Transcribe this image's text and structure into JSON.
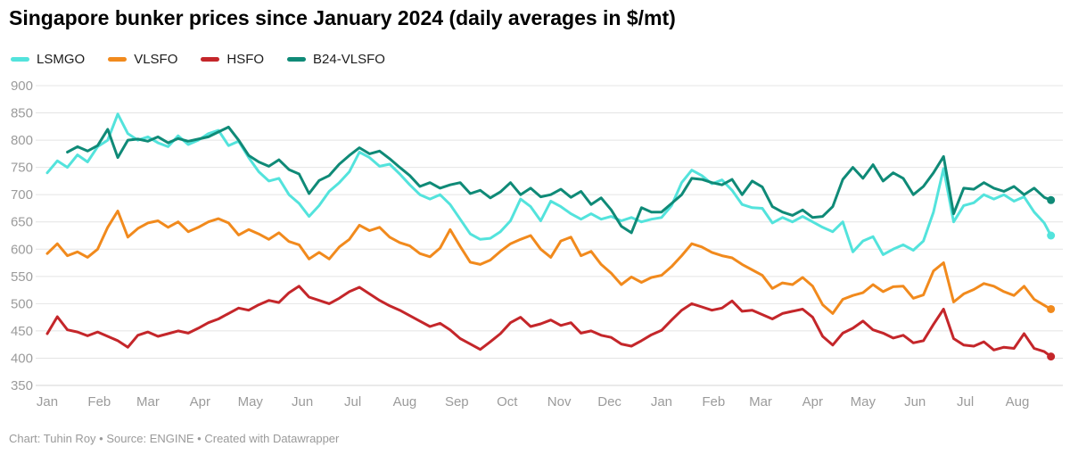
{
  "header": {
    "title": "Singapore bunker prices since January 2024 (daily averages in $/mt)"
  },
  "footer": {
    "credit": "Chart: Tuhin Roy • Source: ENGINE • Created with Datawrapper"
  },
  "chart_data": {
    "type": "line",
    "title": "Singapore bunker prices since January 2024 (daily averages in $/mt)",
    "xlabel": "",
    "ylabel": "$/mt",
    "ylim": [
      350,
      920
    ],
    "grid": true,
    "legend_position": "top-left",
    "x_axis_note": "x values are days since 2024-01-01; data runs Jan 2024 to mid-Aug 2025",
    "y_ticks": [
      350,
      400,
      450,
      500,
      550,
      600,
      650,
      700,
      750,
      800,
      850,
      900
    ],
    "x_ticks": [
      {
        "label": "Jan",
        "day": 0
      },
      {
        "label": "Feb",
        "day": 31
      },
      {
        "label": "Mar",
        "day": 60
      },
      {
        "label": "Apr",
        "day": 91
      },
      {
        "label": "May",
        "day": 121
      },
      {
        "label": "Jun",
        "day": 152
      },
      {
        "label": "Jul",
        "day": 182
      },
      {
        "label": "Aug",
        "day": 213
      },
      {
        "label": "Sep",
        "day": 244
      },
      {
        "label": "Oct",
        "day": 274
      },
      {
        "label": "Nov",
        "day": 305
      },
      {
        "label": "Dec",
        "day": 335
      },
      {
        "label": "Jan",
        "day": 366
      },
      {
        "label": "Feb",
        "day": 397
      },
      {
        "label": "Mar",
        "day": 425
      },
      {
        "label": "Apr",
        "day": 456
      },
      {
        "label": "May",
        "day": 486
      },
      {
        "label": "Jun",
        "day": 517
      },
      {
        "label": "Jul",
        "day": 547
      },
      {
        "label": "Aug",
        "day": 578
      }
    ],
    "x_days": [
      0,
      6,
      12,
      18,
      24,
      30,
      36,
      42,
      48,
      54,
      60,
      66,
      72,
      78,
      84,
      90,
      96,
      102,
      108,
      114,
      120,
      126,
      132,
      138,
      144,
      150,
      156,
      162,
      168,
      174,
      180,
      186,
      192,
      198,
      204,
      210,
      216,
      222,
      228,
      234,
      240,
      246,
      252,
      258,
      264,
      270,
      276,
      282,
      288,
      294,
      300,
      306,
      312,
      318,
      324,
      330,
      336,
      342,
      348,
      354,
      360,
      366,
      372,
      378,
      384,
      390,
      396,
      402,
      408,
      414,
      420,
      426,
      432,
      438,
      444,
      450,
      456,
      462,
      468,
      474,
      480,
      486,
      492,
      498,
      504,
      510,
      516,
      522,
      528,
      534,
      540,
      546,
      552,
      558,
      564,
      570,
      576,
      582,
      588,
      594,
      598
    ],
    "series": [
      {
        "name": "LSMGO",
        "color": "#53e3dc",
        "values": [
          740,
          762,
          750,
          773,
          760,
          788,
          800,
          848,
          812,
          800,
          806,
          795,
          788,
          808,
          792,
          800,
          812,
          818,
          790,
          798,
          768,
          742,
          725,
          730,
          700,
          684,
          660,
          680,
          706,
          722,
          742,
          778,
          768,
          752,
          756,
          738,
          718,
          700,
          692,
          700,
          682,
          655,
          628,
          618,
          620,
          632,
          652,
          692,
          678,
          652,
          688,
          678,
          665,
          655,
          665,
          655,
          660,
          652,
          658,
          650,
          655,
          658,
          680,
          722,
          745,
          735,
          720,
          727,
          708,
          682,
          676,
          675,
          648,
          658,
          650,
          660,
          650,
          640,
          632,
          650,
          595,
          615,
          623,
          590,
          600,
          608,
          598,
          615,
          668,
          748,
          650,
          680,
          685,
          700,
          692,
          700,
          688,
          696,
          668,
          648,
          625
        ]
      },
      {
        "name": "VLSFO",
        "color": "#f18a1d",
        "values": [
          592,
          610,
          588,
          595,
          585,
          600,
          640,
          670,
          622,
          638,
          648,
          652,
          640,
          650,
          632,
          640,
          650,
          656,
          648,
          626,
          636,
          628,
          618,
          630,
          614,
          608,
          582,
          594,
          582,
          604,
          618,
          644,
          634,
          640,
          622,
          612,
          606,
          592,
          586,
          602,
          636,
          605,
          576,
          572,
          580,
          596,
          610,
          618,
          625,
          600,
          585,
          615,
          622,
          588,
          596,
          572,
          556,
          535,
          549,
          539,
          548,
          552,
          568,
          588,
          610,
          604,
          594,
          588,
          584,
          572,
          562,
          552,
          528,
          538,
          535,
          548,
          532,
          498,
          482,
          508,
          515,
          520,
          535,
          522,
          531,
          532,
          510,
          516,
          560,
          575,
          503,
          518,
          526,
          537,
          532,
          522,
          515,
          532,
          508,
          497,
          490
        ]
      },
      {
        "name": "HSFO",
        "color": "#c4262a",
        "values": [
          445,
          476,
          452,
          448,
          441,
          448,
          440,
          432,
          420,
          442,
          448,
          440,
          445,
          450,
          446,
          455,
          465,
          472,
          482,
          492,
          488,
          498,
          506,
          502,
          520,
          532,
          512,
          506,
          500,
          510,
          522,
          530,
          518,
          506,
          496,
          488,
          478,
          468,
          458,
          464,
          452,
          436,
          426,
          416,
          430,
          445,
          465,
          475,
          458,
          463,
          470,
          460,
          465,
          446,
          450,
          442,
          438,
          426,
          422,
          432,
          443,
          451,
          470,
          488,
          500,
          494,
          488,
          492,
          505,
          486,
          488,
          480,
          472,
          482,
          486,
          490,
          475,
          440,
          424,
          446,
          455,
          468,
          452,
          446,
          437,
          442,
          428,
          432,
          462,
          490,
          436,
          424,
          422,
          430,
          415,
          420,
          418,
          445,
          418,
          412,
          403
        ]
      },
      {
        "name": "B24-VLSFO",
        "color": "#0f8a77",
        "values": [
          null,
          null,
          778,
          788,
          780,
          790,
          820,
          768,
          800,
          802,
          798,
          806,
          795,
          803,
          798,
          802,
          806,
          815,
          824,
          800,
          772,
          760,
          752,
          764,
          746,
          738,
          702,
          726,
          735,
          756,
          772,
          786,
          775,
          780,
          766,
          750,
          735,
          715,
          722,
          712,
          718,
          722,
          702,
          708,
          694,
          705,
          722,
          700,
          712,
          696,
          700,
          710,
          695,
          706,
          682,
          694,
          672,
          642,
          630,
          676,
          668,
          668,
          684,
          700,
          730,
          728,
          722,
          718,
          728,
          700,
          725,
          714,
          678,
          668,
          662,
          672,
          658,
          660,
          678,
          728,
          750,
          730,
          755,
          725,
          740,
          730,
          700,
          715,
          740,
          770,
          665,
          712,
          710,
          722,
          712,
          706,
          715,
          700,
          712,
          695,
          690
        ]
      }
    ]
  }
}
